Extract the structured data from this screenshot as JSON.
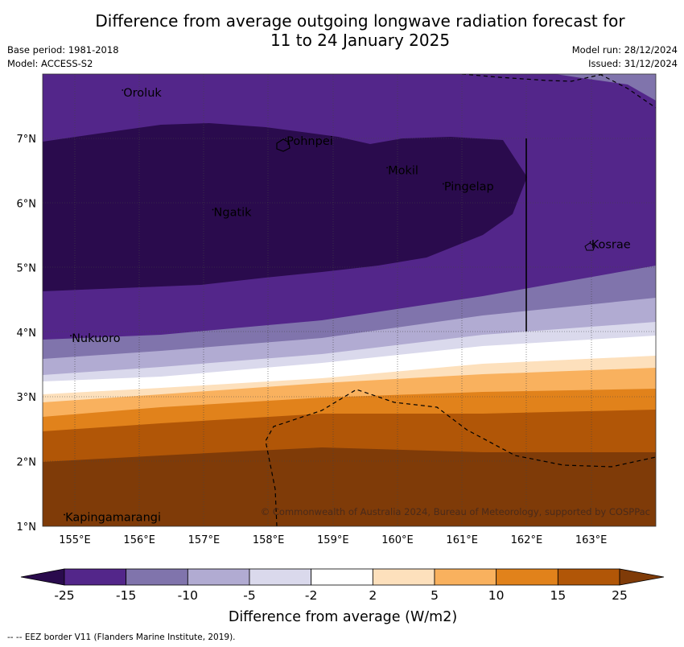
{
  "header": {
    "title_line1": "Difference from average outgoing longwave radiation forecast for",
    "title_line2": "11 to 24 January 2025",
    "base_period": "Base period: 1981-2018",
    "model": "Model: ACCESS-S2",
    "model_run": "Model run: 28/12/2024",
    "issued": "Issued: 31/12/2024"
  },
  "map": {
    "lon_labels": [
      "155°E",
      "156°E",
      "157°E",
      "158°E",
      "159°E",
      "160°E",
      "161°E",
      "162°E",
      "163°E"
    ],
    "lat_labels": [
      "7°N",
      "6°N",
      "5°N",
      "4°N",
      "3°N",
      "2°N",
      "1°N"
    ],
    "places": [
      {
        "name": "Oroluk",
        "lon": 155.75,
        "lat": 7.65
      },
      {
        "name": "Pohnpei",
        "lon": 158.28,
        "lat": 6.9
      },
      {
        "name": "Mokil",
        "lon": 159.85,
        "lat": 6.45
      },
      {
        "name": "Pingelap",
        "lon": 160.72,
        "lat": 6.2
      },
      {
        "name": "Ngatik",
        "lon": 157.15,
        "lat": 5.8
      },
      {
        "name": "Kosrae",
        "lon": 163.0,
        "lat": 5.3
      },
      {
        "name": "Nukuoro",
        "lon": 154.95,
        "lat": 3.85
      },
      {
        "name": "Kapingamarangi",
        "lon": 154.85,
        "lat": 1.08
      }
    ],
    "copyright": "© Commonwealth of Australia 2024, Bureau of Meteorology, supported by COSPPac"
  },
  "colorbar": {
    "ticks": [
      "-25",
      "-15",
      "-10",
      "-5",
      "-2",
      "2",
      "5",
      "10",
      "15",
      "25"
    ],
    "colors": [
      "#2a0b4d",
      "#53268a",
      "#8074ac",
      "#b1abd2",
      "#dad9ec",
      "#ffffff",
      "#fde0bc",
      "#f9b15e",
      "#e1821b",
      "#b15607",
      "#7f3b08"
    ],
    "label": "Difference from average (W/m2)"
  },
  "footer": {
    "legend_text": "-- -- EEZ border V11 (Flanders Marine Institute, 2019)."
  }
}
